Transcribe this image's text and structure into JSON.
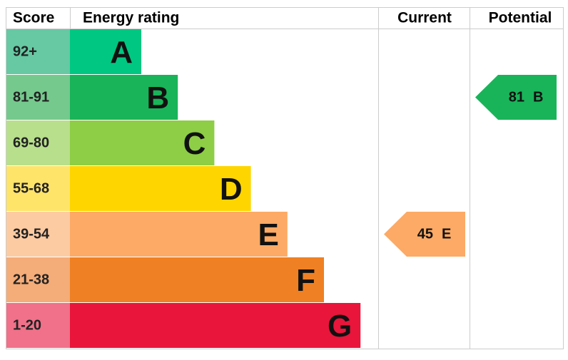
{
  "header": {
    "score": "Score",
    "rating": "Energy rating",
    "current": "Current",
    "potential": "Potential"
  },
  "bands": [
    {
      "score": "92+",
      "letter": "A",
      "color": "#00c781",
      "score_color": "#66c9a3"
    },
    {
      "score": "81-91",
      "letter": "B",
      "color": "#19b459",
      "score_color": "#75c98d"
    },
    {
      "score": "69-80",
      "letter": "C",
      "color": "#8dce46",
      "score_color": "#b8df8c"
    },
    {
      "score": "55-68",
      "letter": "D",
      "color": "#ffd500",
      "score_color": "#ffe46a"
    },
    {
      "score": "39-54",
      "letter": "E",
      "color": "#fcaa65",
      "score_color": "#fdcba2"
    },
    {
      "score": "21-38",
      "letter": "F",
      "color": "#ef8023",
      "score_color": "#f4ac78"
    },
    {
      "score": "1-20",
      "letter": "G",
      "color": "#e9153b",
      "score_color": "#f07189"
    }
  ],
  "current": {
    "value": "45",
    "letter": "E"
  },
  "potential": {
    "value": "81",
    "letter": "B"
  }
}
